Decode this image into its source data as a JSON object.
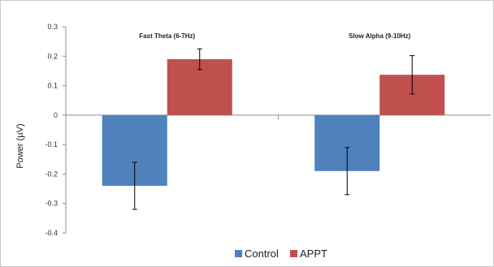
{
  "chart_data": {
    "type": "bar",
    "categories": [
      "Fast Theta (6-7Hz)",
      "Slow Alpha (9-10Hz)"
    ],
    "series": [
      {
        "name": "Control",
        "color": "#4f81bd",
        "values": [
          -0.24,
          -0.19
        ],
        "errors": [
          0.08,
          0.08
        ]
      },
      {
        "name": "APPT",
        "color": "#c0504d",
        "values": [
          0.19,
          0.137
        ],
        "errors": [
          0.035,
          0.065
        ]
      }
    ],
    "ylabel": "Power (µV)",
    "ylim": [
      -0.4,
      0.3
    ],
    "yticks": [
      0.3,
      0.2,
      0.1,
      0,
      -0.1,
      -0.2,
      -0.3,
      -0.4
    ],
    "ytick_labels": [
      "0.3",
      "0.2",
      "0.1",
      "0",
      "-0.1",
      "-0.2",
      "-0.3",
      "-0.4"
    ],
    "grid": false,
    "legend_position": "bottom"
  }
}
